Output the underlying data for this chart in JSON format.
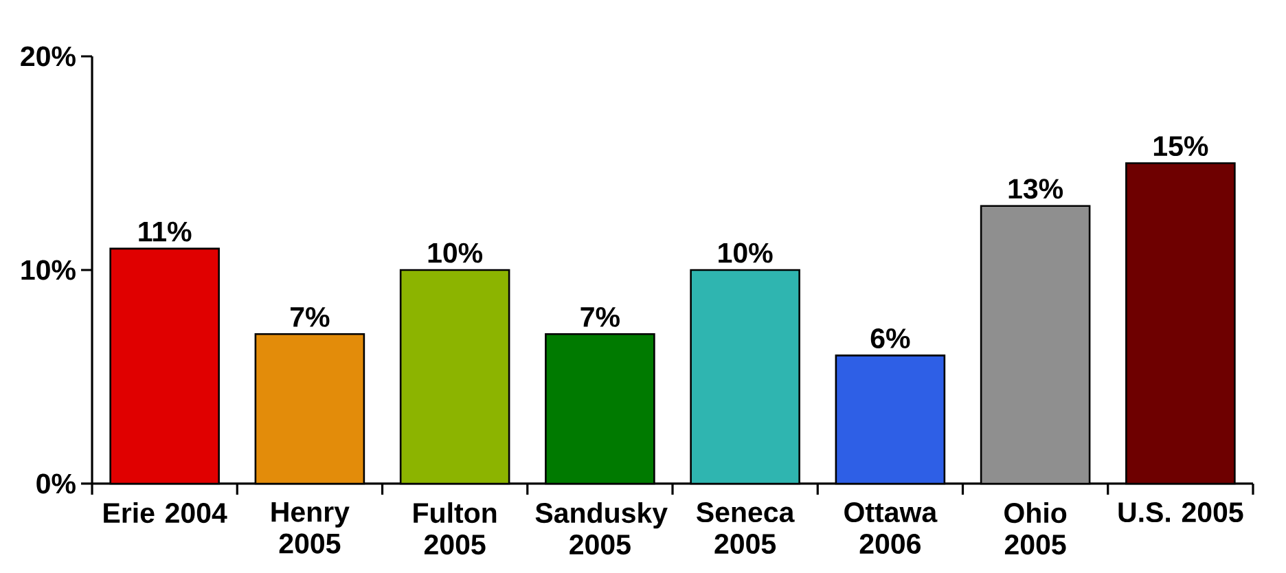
{
  "chart_data": {
    "type": "bar",
    "categories": [
      "Erie 2004",
      "Henry 2005",
      "Fulton 2005",
      "Sandusky 2005",
      "Seneca 2005",
      "Ottawa 2006",
      "Ohio 2005",
      "U.S. 2005"
    ],
    "values": [
      11,
      7,
      10,
      7,
      10,
      6,
      13,
      15
    ],
    "colors": [
      "#e00000",
      "#e38c0a",
      "#8cb400",
      "#007a00",
      "#2fb5b0",
      "#2e5fe6",
      "#8f8f8f",
      "#6e0000"
    ],
    "value_labels": [
      "11%",
      "7%",
      "10%",
      "7%",
      "10%",
      "6%",
      "13%",
      "15%"
    ],
    "ylim": [
      0,
      20
    ],
    "yticks": [
      {
        "value": 0,
        "label": "0%"
      },
      {
        "value": 10,
        "label": "10%"
      },
      {
        "value": 20,
        "label": "20%"
      }
    ]
  }
}
